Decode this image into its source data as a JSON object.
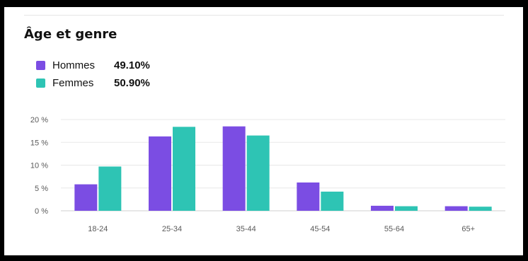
{
  "title": "Âge et genre",
  "colors": {
    "hommes": "#7b4de3",
    "femmes": "#2ec4b4",
    "grid": "#e8e8e8",
    "axis": "#cfcfcf"
  },
  "legend": [
    {
      "label": "Hommes",
      "value": "49.10%",
      "color": "#7b4de3"
    },
    {
      "label": "Femmes",
      "value": "50.90%",
      "color": "#2ec4b4"
    }
  ],
  "chart_data": {
    "type": "bar",
    "categories": [
      "18-24",
      "25-34",
      "35-44",
      "45-54",
      "55-64",
      "65+"
    ],
    "series": [
      {
        "name": "Hommes",
        "values": [
          5.8,
          16.3,
          18.5,
          6.2,
          1.1,
          1.0
        ]
      },
      {
        "name": "Femmes",
        "values": [
          9.7,
          18.4,
          16.5,
          4.2,
          1.0,
          0.9
        ]
      }
    ],
    "yticks": [
      "0 %",
      "5 %",
      "10 %",
      "15 %",
      "20 %"
    ],
    "ytick_values": [
      0,
      5,
      10,
      15,
      20
    ],
    "ylim": [
      0,
      20
    ],
    "grid": true,
    "legend_position": "top-left"
  }
}
